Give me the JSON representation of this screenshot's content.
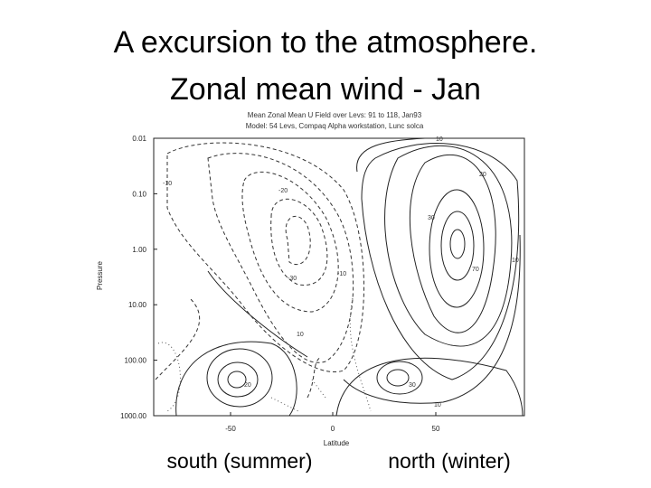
{
  "title": [
    "A excursion to the atmosphere.",
    "Zonal mean wind - Jan"
  ],
  "figure": {
    "header": [
      "Mean Zonal Mean U Field over Levs: 91 to 118, Jan93",
      "Model: 54 Levs, Compaq Alpha workstation, Lunc solca"
    ],
    "y_label": "Pressure",
    "x_label": "Latitude",
    "y_ticks": [
      "0.01",
      "0.10",
      "1.00",
      "10.00",
      "100.00",
      "1000.00"
    ],
    "x_ticks": [
      "-50",
      "0",
      "50"
    ],
    "contour_labels": [
      "-10",
      "-20",
      "-30",
      "-10",
      "10",
      "10",
      "20",
      "30",
      "70",
      "10",
      "10",
      "20",
      "30"
    ]
  },
  "captions": [
    "south (summer)",
    "north (winter)"
  ]
}
